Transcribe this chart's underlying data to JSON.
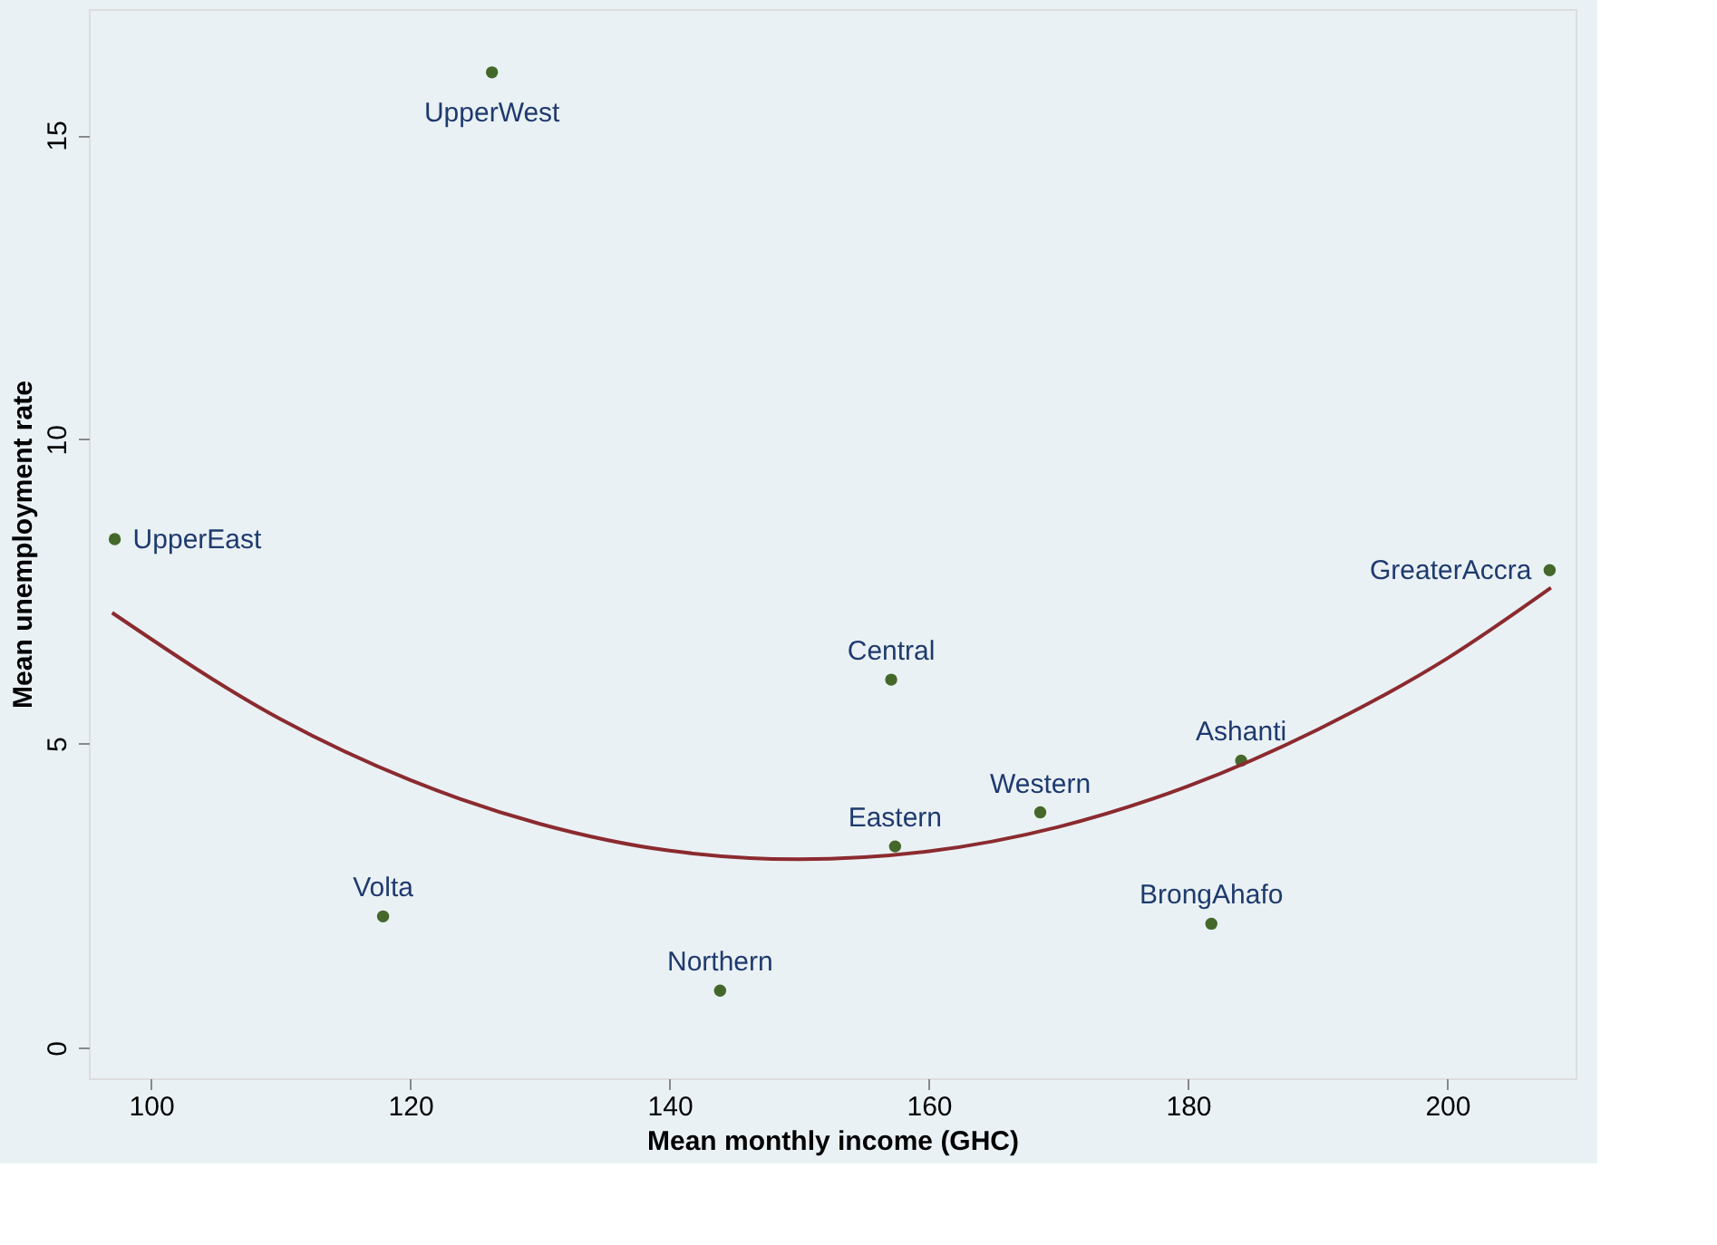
{
  "chart_data": {
    "type": "scatter",
    "xlabel": "Mean monthly income (GHC)",
    "ylabel": "Mean unemployment rate",
    "xlim": [
      95.2,
      209.9
    ],
    "ylim": [
      -0.5,
      17.07
    ],
    "xticks": [
      100,
      120,
      140,
      160,
      180,
      200
    ],
    "yticks": [
      0,
      5,
      10,
      15
    ],
    "grid": false,
    "marker": "circle",
    "series": [
      {
        "type": "scatter",
        "color": "#44682a",
        "x": [
          126.3,
          97.2,
          207.9,
          157.1,
          184.1,
          168.6,
          157.4,
          117.9,
          181.8,
          143.9
        ],
        "values": [
          16.03,
          8.36,
          7.85,
          6.05,
          4.72,
          3.87,
          3.31,
          2.16,
          2.04,
          0.94
        ]
      },
      {
        "type": "line",
        "color": "#8b2b2f",
        "line_style": "solid",
        "marker": "none",
        "x": [
          97,
          110,
          120,
          130,
          140,
          150,
          160,
          170,
          180,
          190,
          200,
          208
        ],
        "values": [
          7.15,
          5.4,
          4.4,
          3.68,
          3.24,
          3.1,
          3.23,
          3.63,
          4.3,
          5.23,
          6.4,
          7.56
        ]
      }
    ],
    "annotations": [
      {
        "text": "UpperWest",
        "x": 126.3,
        "y": 16.03
      },
      {
        "text": "UpperEast",
        "x": 97.2,
        "y": 8.36
      },
      {
        "text": "GreaterAccra",
        "x": 207.9,
        "y": 7.85
      },
      {
        "text": "Central",
        "x": 157.1,
        "y": 6.05
      },
      {
        "text": "Ashanti",
        "x": 184.1,
        "y": 4.72
      },
      {
        "text": "Western",
        "x": 168.6,
        "y": 3.87
      },
      {
        "text": "Eastern",
        "x": 157.4,
        "y": 3.31
      },
      {
        "text": "Volta",
        "x": 117.9,
        "y": 2.16
      },
      {
        "text": "BrongAhafo",
        "x": 181.8,
        "y": 2.04
      },
      {
        "text": "Northern",
        "x": 143.9,
        "y": 0.94
      }
    ]
  }
}
